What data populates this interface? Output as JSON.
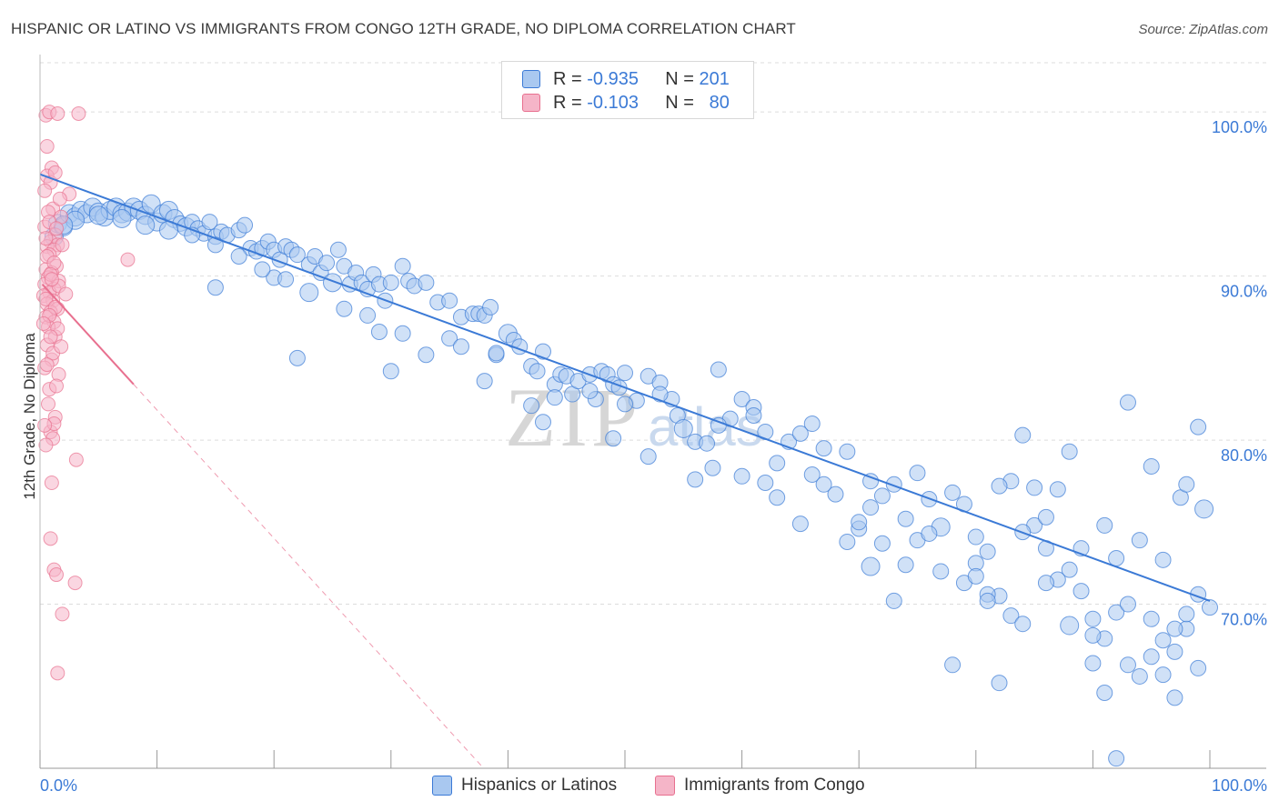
{
  "header": {
    "title": "HISPANIC OR LATINO VS IMMIGRANTS FROM CONGO 12TH GRADE, NO DIPLOMA CORRELATION CHART",
    "source": "Source: ZipAtlas.com"
  },
  "legend": {
    "rows": [
      {
        "r_label": "R =",
        "r_value": "-0.935",
        "n_label": "N =",
        "n_value": "201"
      },
      {
        "r_label": "R =",
        "r_value": "-0.103",
        "n_label": "N =",
        "n_value": "80"
      }
    ]
  },
  "watermark": {
    "zip": "ZIP",
    "atlas": "atlas"
  },
  "colors": {
    "blue": "#3b7ad6",
    "blue_fill": "#a9c8f0",
    "pink": "#e8708f",
    "pink_fill": "#f5b5c8",
    "grid": "#dddddd"
  },
  "chart_data": {
    "type": "scatter",
    "title": "HISPANIC OR LATINO VS IMMIGRANTS FROM CONGO 12TH GRADE, NO DIPLOMA CORRELATION CHART",
    "xlabel": "",
    "ylabel": "12th Grade, No Diploma",
    "xlim": [
      0,
      100
    ],
    "ylim": [
      60,
      103.5
    ],
    "x_tick_labels": [
      "0.0%",
      "100.0%"
    ],
    "y_ticks": [
      100,
      90,
      80,
      70
    ],
    "y_tick_labels": [
      "100.0%",
      "90.0%",
      "80.0%",
      "70.0%"
    ],
    "grid": true,
    "legend_position": "top-center",
    "series": [
      {
        "name": "Hispanics or Latinos",
        "color": "#3b7ad6",
        "r": -0.935,
        "n": 201,
        "trend": [
          [
            0,
            96.2
          ],
          [
            100,
            70.2
          ]
        ],
        "points": [
          [
            1.2,
            92.4
          ],
          [
            1.5,
            93.2
          ],
          [
            2,
            93
          ],
          [
            2.5,
            93.8
          ],
          [
            3,
            93.6
          ],
          [
            3.5,
            94
          ],
          [
            4,
            93.8
          ],
          [
            4.5,
            94.2
          ],
          [
            5,
            93.9
          ],
          [
            5.5,
            93.6
          ],
          [
            6,
            94
          ],
          [
            6.5,
            94.2
          ],
          [
            7,
            93.8
          ],
          [
            7.5,
            93.9
          ],
          [
            8,
            94.2
          ],
          [
            8.5,
            94
          ],
          [
            9,
            93.7
          ],
          [
            9.5,
            94.4
          ],
          [
            10,
            93.3
          ],
          [
            10.5,
            93.8
          ],
          [
            11,
            94
          ],
          [
            11.5,
            93.5
          ],
          [
            12,
            93.2
          ],
          [
            12.5,
            93
          ],
          [
            13,
            93.3
          ],
          [
            13.5,
            92.9
          ],
          [
            14,
            92.6
          ],
          [
            14.5,
            93.3
          ],
          [
            15,
            92.4
          ],
          [
            15.5,
            92.7
          ],
          [
            16,
            92.5
          ],
          [
            17,
            92.8
          ],
          [
            17.5,
            93.1
          ],
          [
            18,
            91.7
          ],
          [
            18.5,
            91.5
          ],
          [
            19,
            91.7
          ],
          [
            19.5,
            92.1
          ],
          [
            20,
            91.6
          ],
          [
            20.5,
            91
          ],
          [
            21,
            91.8
          ],
          [
            21.5,
            91.6
          ],
          [
            22,
            91.3
          ],
          [
            23,
            90.7
          ],
          [
            23.5,
            91.2
          ],
          [
            24,
            90.2
          ],
          [
            24.5,
            90.8
          ],
          [
            25,
            89.6
          ],
          [
            25.5,
            91.6
          ],
          [
            26,
            90.6
          ],
          [
            26.5,
            89.5
          ],
          [
            27,
            90.2
          ],
          [
            27.5,
            89.6
          ],
          [
            28,
            89.2
          ],
          [
            28.5,
            90.1
          ],
          [
            29,
            89.5
          ],
          [
            29.5,
            88.5
          ],
          [
            30,
            89.6
          ],
          [
            31,
            90.6
          ],
          [
            31.5,
            89.7
          ],
          [
            32,
            89.4
          ],
          [
            33,
            89.6
          ],
          [
            34,
            88.4
          ],
          [
            35,
            88.5
          ],
          [
            36,
            87.5
          ],
          [
            37,
            87.7
          ],
          [
            37.5,
            87.7
          ],
          [
            38,
            87.6
          ],
          [
            38.5,
            88.1
          ],
          [
            39,
            85.2
          ],
          [
            40,
            86.5
          ],
          [
            40.5,
            86.1
          ],
          [
            41,
            85.7
          ],
          [
            42,
            84.5
          ],
          [
            42.5,
            84.2
          ],
          [
            43,
            85.4
          ],
          [
            44,
            83.4
          ],
          [
            44.5,
            84
          ],
          [
            45,
            83.9
          ],
          [
            45.5,
            82.8
          ],
          [
            46,
            83.6
          ],
          [
            47,
            84
          ],
          [
            47.5,
            82.5
          ],
          [
            48,
            84.2
          ],
          [
            48.5,
            84
          ],
          [
            49,
            83.4
          ],
          [
            49.5,
            83.2
          ],
          [
            50,
            84.1
          ],
          [
            51,
            82.4
          ],
          [
            52,
            83.9
          ],
          [
            53,
            83.5
          ],
          [
            54,
            82.5
          ],
          [
            54.5,
            81.5
          ],
          [
            55,
            80.7
          ],
          [
            56,
            79.9
          ],
          [
            57,
            79.8
          ],
          [
            57.5,
            78.3
          ],
          [
            58,
            84.3
          ],
          [
            59,
            81.3
          ],
          [
            60,
            82.5
          ],
          [
            61,
            82
          ],
          [
            62,
            80.5
          ],
          [
            63,
            78.6
          ],
          [
            64,
            79.9
          ],
          [
            65,
            80.4
          ],
          [
            66,
            77.9
          ],
          [
            67,
            79.5
          ],
          [
            68,
            76.7
          ],
          [
            69,
            79.3
          ],
          [
            70,
            74.6
          ],
          [
            71,
            77.5
          ],
          [
            72,
            76.6
          ],
          [
            73,
            77.3
          ],
          [
            74,
            75.2
          ],
          [
            75,
            73.9
          ],
          [
            76,
            76.4
          ],
          [
            77,
            74.7
          ],
          [
            78,
            76.8
          ],
          [
            79,
            76.1
          ],
          [
            80,
            72.5
          ],
          [
            81,
            73.2
          ],
          [
            82,
            70.5
          ],
          [
            83,
            69.3
          ],
          [
            84,
            68.8
          ],
          [
            85,
            74.8
          ],
          [
            86,
            73.4
          ],
          [
            87,
            71.5
          ],
          [
            88,
            72.1
          ],
          [
            89,
            70.8
          ],
          [
            90,
            69.1
          ],
          [
            91,
            67.9
          ],
          [
            92,
            69.5
          ],
          [
            93,
            66.3
          ],
          [
            94,
            65.6
          ],
          [
            95,
            66.8
          ],
          [
            96,
            67.8
          ],
          [
            97,
            67.1
          ],
          [
            98,
            68.5
          ],
          [
            99,
            70.6
          ],
          [
            99.5,
            75.8
          ],
          [
            20,
            89.9
          ],
          [
            29,
            86.6
          ],
          [
            35,
            86.2
          ],
          [
            39,
            85.3
          ],
          [
            49,
            80.1
          ],
          [
            56,
            77.6
          ],
          [
            63,
            76.5
          ],
          [
            66,
            81
          ],
          [
            70,
            75
          ],
          [
            80,
            74.1
          ],
          [
            84,
            80.3
          ],
          [
            87,
            77
          ],
          [
            91,
            74.8
          ],
          [
            93,
            82.3
          ],
          [
            95,
            78.4
          ],
          [
            96,
            72.7
          ],
          [
            97.5,
            76.5
          ],
          [
            98,
            77.3
          ],
          [
            99,
            80.8
          ],
          [
            100,
            69.8
          ],
          [
            88,
            79.3
          ],
          [
            60,
            77.8
          ],
          [
            71,
            72.3
          ],
          [
            76,
            74.3
          ],
          [
            81,
            70.6
          ],
          [
            86,
            75.3
          ],
          [
            83,
            77.5
          ],
          [
            79,
            71.3
          ],
          [
            85,
            77.1
          ],
          [
            89,
            73.4
          ],
          [
            82,
            77.2
          ],
          [
            74,
            72.4
          ],
          [
            92,
            72.8
          ],
          [
            94,
            73.9
          ],
          [
            90,
            68.1
          ],
          [
            96,
            65.7
          ],
          [
            98,
            69.4
          ],
          [
            73,
            70.2
          ],
          [
            78,
            66.3
          ],
          [
            82,
            65.2
          ],
          [
            91,
            64.6
          ],
          [
            77,
            72
          ],
          [
            80,
            71.7
          ],
          [
            84,
            74.4
          ],
          [
            86,
            71.3
          ],
          [
            88,
            68.7
          ],
          [
            93,
            70
          ],
          [
            95,
            69.1
          ],
          [
            97,
            68.5
          ],
          [
            99,
            66.1
          ],
          [
            65,
            74.9
          ],
          [
            67,
            77.3
          ],
          [
            69,
            73.8
          ],
          [
            71,
            75.9
          ],
          [
            75,
            78
          ],
          [
            58,
            80.9
          ],
          [
            61,
            81.5
          ],
          [
            53,
            82.8
          ],
          [
            50,
            82.2
          ],
          [
            47,
            83
          ],
          [
            44,
            82.6
          ],
          [
            42,
            82.1
          ],
          [
            38,
            83.6
          ],
          [
            36,
            85.7
          ],
          [
            33,
            85.2
          ],
          [
            31,
            86.5
          ],
          [
            28,
            87.6
          ],
          [
            26,
            88
          ],
          [
            23,
            89
          ],
          [
            21,
            89.8
          ],
          [
            19,
            90.4
          ],
          [
            17,
            91.2
          ],
          [
            15,
            91.9
          ],
          [
            13,
            92.5
          ],
          [
            11,
            92.8
          ],
          [
            9,
            93.1
          ],
          [
            7,
            93.5
          ],
          [
            5,
            93.7
          ],
          [
            3,
            93.4
          ],
          [
            2,
            93.1
          ],
          [
            15,
            89.3
          ],
          [
            22,
            85
          ],
          [
            30,
            84.2
          ],
          [
            43,
            81.1
          ],
          [
            52,
            79
          ],
          [
            62,
            77.4
          ],
          [
            72,
            73.7
          ],
          [
            81,
            70.2
          ],
          [
            90,
            66.4
          ],
          [
            97,
            64.3
          ],
          [
            92,
            60.6
          ]
        ]
      },
      {
        "name": "Immigrants from Congo",
        "color": "#e8708f",
        "r": -0.103,
        "n": 80,
        "trend": [
          [
            0.2,
            89.5
          ],
          [
            8,
            83.4
          ]
        ],
        "points": [
          [
            0.5,
            99.8
          ],
          [
            0.8,
            100
          ],
          [
            1.5,
            99.9
          ],
          [
            3.3,
            99.9
          ],
          [
            1,
            96.6
          ],
          [
            0.6,
            96.1
          ],
          [
            0.9,
            95.7
          ],
          [
            2.5,
            95
          ],
          [
            1.1,
            94.1
          ],
          [
            0.7,
            93.9
          ],
          [
            1.8,
            93.6
          ],
          [
            0.4,
            93
          ],
          [
            1.3,
            92.5
          ],
          [
            0.9,
            92.1
          ],
          [
            1.5,
            91.9
          ],
          [
            0.6,
            91.8
          ],
          [
            1.2,
            91.6
          ],
          [
            0.8,
            91.3
          ],
          [
            7.5,
            91
          ],
          [
            1.4,
            90.6
          ],
          [
            0.5,
            90.4
          ],
          [
            1,
            90.2
          ],
          [
            0.7,
            89.9
          ],
          [
            1.6,
            89.7
          ],
          [
            0.4,
            89.5
          ],
          [
            1.2,
            89.2
          ],
          [
            0.8,
            89
          ],
          [
            0.3,
            88.8
          ],
          [
            1.1,
            88.5
          ],
          [
            0.6,
            88.3
          ],
          [
            1.5,
            88
          ],
          [
            0.9,
            87.8
          ],
          [
            0.5,
            87.5
          ],
          [
            1.2,
            87.2
          ],
          [
            0.7,
            86.9
          ],
          [
            1.3,
            86.3
          ],
          [
            0.6,
            85.8
          ],
          [
            1,
            84.9
          ],
          [
            0.4,
            84.4
          ],
          [
            1.6,
            84
          ],
          [
            0.8,
            83.1
          ],
          [
            1.3,
            81.4
          ],
          [
            0.9,
            80.5
          ],
          [
            1.1,
            80.1
          ],
          [
            0.5,
            79.7
          ],
          [
            3.1,
            78.8
          ],
          [
            1,
            77.4
          ],
          [
            0.9,
            74
          ],
          [
            1.2,
            72.1
          ],
          [
            1.4,
            71.8
          ],
          [
            3,
            71.3
          ],
          [
            1.9,
            69.4
          ],
          [
            1.5,
            65.8
          ],
          [
            0.6,
            97.9
          ],
          [
            1.3,
            96.3
          ],
          [
            0.4,
            95.2
          ],
          [
            1.7,
            94.7
          ],
          [
            0.8,
            93.3
          ],
          [
            1.4,
            92.9
          ],
          [
            0.5,
            92.3
          ],
          [
            1.9,
            91.9
          ],
          [
            0.6,
            91.2
          ],
          [
            1.2,
            90.8
          ],
          [
            0.9,
            90.1
          ],
          [
            1.6,
            89.4
          ],
          [
            0.5,
            88.6
          ],
          [
            1.3,
            88.1
          ],
          [
            0.8,
            87.6
          ],
          [
            1.5,
            86.8
          ],
          [
            0.9,
            86.3
          ],
          [
            1.1,
            85.3
          ],
          [
            0.6,
            84.6
          ],
          [
            1.4,
            83.3
          ],
          [
            0.7,
            82.2
          ],
          [
            1.2,
            81
          ],
          [
            0.4,
            80.9
          ],
          [
            1.8,
            85.7
          ],
          [
            0.3,
            87.1
          ],
          [
            2.2,
            88.9
          ],
          [
            1,
            89.8
          ]
        ]
      }
    ]
  },
  "bottom_legend": {
    "items": [
      "Hispanics or Latinos",
      "Immigrants from Congo"
    ]
  }
}
